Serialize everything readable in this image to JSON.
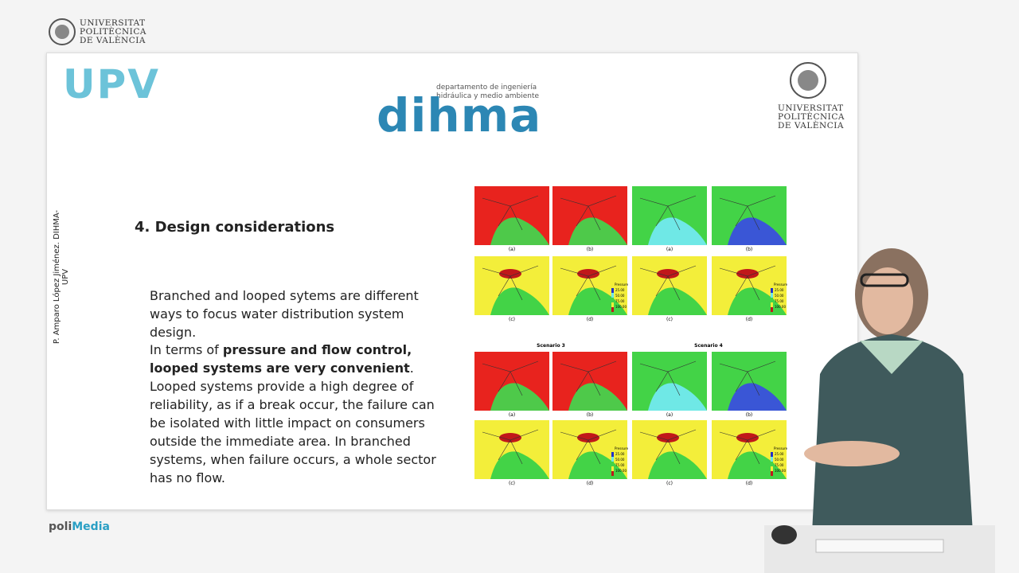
{
  "header": {
    "logo_lines": [
      "UNIVERSITAT",
      "POLITÈCNICA",
      "DE VALÈNCIA"
    ]
  },
  "slide": {
    "brand": "UPV",
    "dept_lines": [
      "departamento de ingeniería",
      "hidráulica y medio ambiente"
    ],
    "dept_logo": "dihma",
    "right_logo_lines": [
      "UNIVERSITAT",
      "POLITÈCNICA",
      "DE VALÈNCIA"
    ],
    "author": "P. Amparo López Jiménez. DIHMA-UPV",
    "heading": "4. Design considerations",
    "paragraph1": "Branched and looped sytems are different ways to focus water distribution system design.",
    "paragraph2": [
      {
        "text": "In terms of "
      },
      {
        "text": "pressure and flow control, looped systems are very convenient",
        "bold": true
      },
      {
        "text": ". Looped systems provide a high degree of reliability, as if a break occur, the failure can be isolated with little impact on consumers outside the immediate area. In branched systems, when failure occurs, a whole sector has no flow."
      }
    ],
    "figure": {
      "groups": [
        {
          "panels": [
            [
              "(a)",
              "(b)",
              "(a)",
              "(b)"
            ],
            [
              "(c)",
              "(d)",
              "(c)",
              "(d)"
            ]
          ]
        },
        {
          "titles": [
            "Scenario 3",
            "Scenario 4"
          ],
          "panels": [
            [
              "(a)",
              "(b)",
              "(a)",
              "(b)"
            ],
            [
              "(c)",
              "(d)",
              "(c)",
              "(d)"
            ]
          ]
        }
      ],
      "legend": {
        "title": "Pressure",
        "ticks": [
          "25.00",
          "50.00",
          "75.00",
          "100.00"
        ]
      }
    }
  },
  "footer": {
    "brand_parts": [
      "poli",
      "Media"
    ]
  }
}
